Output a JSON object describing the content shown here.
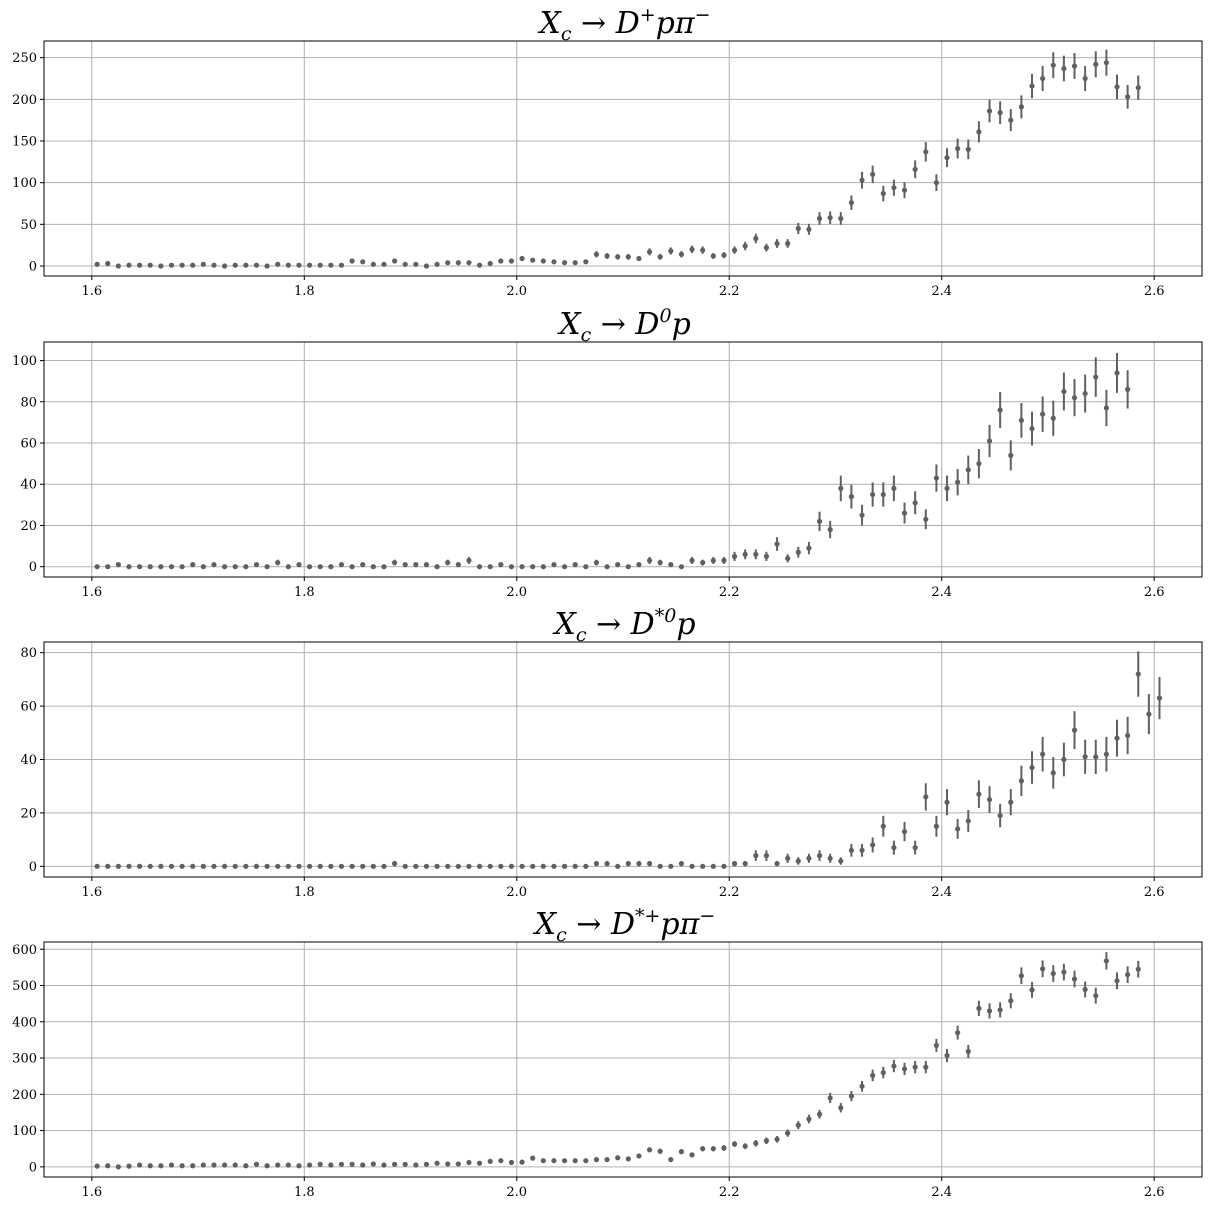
{
  "colors": {
    "points": "#606060",
    "grid": "#b0b0b0",
    "frame": "#000000"
  },
  "chart_data": [
    {
      "type": "scatter",
      "title_parts": [
        "X",
        "c",
        " → D",
        "+",
        "pπ",
        "−"
      ],
      "title_text": "X_c → D^+ p π^-",
      "xlim": [
        1.555,
        2.645
      ],
      "ylim": [
        -12,
        270
      ],
      "xticks": [
        1.6,
        1.8,
        2.0,
        2.2,
        2.4,
        2.6
      ],
      "yticks": [
        0,
        50,
        100,
        150,
        200,
        250
      ],
      "grid": true,
      "x_start": 1.605,
      "x_step": 0.01,
      "values": [
        2,
        3,
        0,
        1,
        1,
        1,
        0,
        1,
        1,
        1,
        2,
        1,
        0,
        1,
        1,
        1,
        0,
        2,
        1,
        1,
        1,
        1,
        1,
        1,
        6,
        5,
        2,
        2,
        6,
        2,
        2,
        0,
        2,
        4,
        4,
        4,
        1,
        3,
        6,
        6,
        9,
        7,
        6,
        5,
        4,
        4,
        5,
        14,
        12,
        11,
        11,
        9,
        17,
        11,
        18,
        14,
        20,
        19,
        12,
        13,
        19,
        24,
        33,
        22,
        27,
        27,
        45,
        44,
        57,
        58,
        57,
        76,
        103,
        110,
        87,
        94,
        91,
        116,
        137,
        100,
        130,
        141,
        140,
        161,
        186,
        184,
        175,
        191,
        216,
        225,
        241,
        237,
        240,
        225,
        242,
        244,
        215,
        203,
        214
      ],
      "errors": [
        1.5,
        1.8,
        0.7,
        1,
        1,
        1,
        0.7,
        1,
        1,
        1,
        1.5,
        1,
        0.7,
        1,
        1,
        1,
        0.7,
        1.5,
        1,
        1,
        1,
        1,
        1,
        1,
        2.5,
        2.3,
        1.5,
        1.5,
        2.5,
        1.5,
        1.5,
        0.7,
        1.5,
        2,
        2,
        2,
        1,
        1.8,
        2.5,
        2.5,
        3,
        2.7,
        2.5,
        2.3,
        2,
        2,
        2.3,
        3.8,
        3.5,
        3.4,
        3.4,
        3,
        4.2,
        3.4,
        4.3,
        3.8,
        4.5,
        4.4,
        3.5,
        3.6,
        4.4,
        5,
        5.8,
        4.7,
        5.2,
        5.2,
        6.7,
        6.6,
        7.6,
        7.6,
        7.6,
        8.7,
        10,
        10.5,
        9.3,
        9.7,
        9.5,
        10.8,
        11.7,
        10,
        11.4,
        11.9,
        11.8,
        12.7,
        13.6,
        13.6,
        13.2,
        13.8,
        14.7,
        15,
        15.5,
        15.4,
        15.5,
        15,
        15.6,
        15.6,
        14.7,
        14.2,
        14.6
      ]
    },
    {
      "type": "scatter",
      "title_parts": [
        "X",
        "c",
        " → D",
        "0",
        "p",
        ""
      ],
      "title_text": "X_c → D^0 p",
      "xlim": [
        1.555,
        2.645
      ],
      "ylim": [
        -5,
        109
      ],
      "xticks": [
        1.6,
        1.8,
        2.0,
        2.2,
        2.4,
        2.6
      ],
      "yticks": [
        0,
        20,
        40,
        60,
        80,
        100
      ],
      "grid": true,
      "x_start": 1.605,
      "x_step": 0.01,
      "values": [
        0,
        0,
        1,
        0,
        0,
        0,
        0,
        0,
        0,
        1,
        0,
        1,
        0,
        0,
        0,
        1,
        0,
        2,
        0,
        1,
        0,
        0,
        0,
        1,
        0,
        1,
        0,
        0,
        2,
        1,
        1,
        1,
        0,
        2,
        1,
        3,
        0,
        0,
        1,
        0,
        0,
        0,
        0,
        1,
        0,
        1,
        0,
        2,
        0,
        1,
        0,
        1,
        3,
        2,
        1,
        0,
        3,
        2,
        3,
        3,
        5,
        6,
        6,
        5,
        11,
        4,
        7,
        9,
        22,
        18,
        38,
        34,
        25,
        35,
        35,
        38,
        26,
        31,
        23,
        43,
        38,
        41,
        47,
        50,
        61,
        76,
        54,
        71,
        67,
        74,
        72,
        85,
        82,
        84,
        92,
        77,
        94,
        86
      ],
      "errors": [
        0.5,
        0.5,
        1,
        0.5,
        0.5,
        0.5,
        0.5,
        0.5,
        0.5,
        1,
        0.5,
        1,
        0.5,
        0.5,
        0.5,
        1,
        0.5,
        1.4,
        0.5,
        1,
        0.5,
        0.5,
        0.5,
        1,
        0.5,
        1,
        0.5,
        0.5,
        1.4,
        1,
        1,
        1,
        0.5,
        1.4,
        1,
        1.7,
        0.5,
        0.5,
        1,
        0.5,
        0.5,
        0.5,
        0.5,
        1,
        0.5,
        1,
        0.5,
        1.4,
        0.5,
        1,
        0.5,
        1,
        1.7,
        1.4,
        1,
        0.5,
        1.7,
        1.4,
        1.7,
        1.7,
        2.2,
        2.4,
        2.4,
        2.2,
        3.3,
        2,
        2.6,
        3,
        4.7,
        4.2,
        6.2,
        5.8,
        5,
        5.9,
        5.9,
        6.2,
        5.1,
        5.6,
        4.8,
        6.6,
        6.2,
        6.4,
        6.9,
        7.1,
        7.8,
        8.7,
        7.3,
        8.4,
        8.2,
        8.6,
        8.5,
        9.2,
        9,
        9.2,
        9.6,
        8.8,
        9.7,
        9.3
      ]
    },
    {
      "type": "scatter",
      "title_parts": [
        "X",
        "c",
        " → D",
        "*0",
        "p",
        ""
      ],
      "title_text": "X_c → D^{*0} p",
      "xlim": [
        1.555,
        2.645
      ],
      "ylim": [
        -4,
        84
      ],
      "xticks": [
        1.6,
        1.8,
        2.0,
        2.2,
        2.4,
        2.6
      ],
      "yticks": [
        0,
        20,
        40,
        60,
        80
      ],
      "grid": true,
      "x_start": 1.605,
      "x_step": 0.01,
      "values": [
        0,
        0,
        0,
        0,
        0,
        0,
        0,
        0,
        0,
        0,
        0,
        0,
        0,
        0,
        0,
        0,
        0,
        0,
        0,
        0,
        0,
        0,
        0,
        0,
        0,
        0,
        0,
        0,
        1,
        0,
        0,
        0,
        0,
        0,
        0,
        0,
        0,
        0,
        0,
        0,
        0,
        0,
        0,
        0,
        0,
        0,
        0,
        1,
        1,
        0,
        1,
        1,
        1,
        0,
        0,
        1,
        0,
        0,
        0,
        0,
        1,
        1,
        4,
        4,
        1,
        3,
        2,
        3,
        4,
        3,
        2,
        6,
        6,
        8,
        15,
        7,
        13,
        7,
        26,
        15,
        24,
        14,
        17,
        27,
        25,
        19,
        24,
        32,
        37,
        42,
        35,
        40,
        51,
        41,
        41,
        42,
        48,
        49,
        72,
        57,
        63
      ],
      "errors": [
        0.3,
        0.3,
        0.3,
        0.3,
        0.3,
        0.3,
        0.3,
        0.3,
        0.3,
        0.3,
        0.3,
        0.3,
        0.3,
        0.3,
        0.3,
        0.3,
        0.3,
        0.3,
        0.3,
        0.3,
        0.3,
        0.3,
        0.3,
        0.3,
        0.3,
        0.3,
        0.3,
        0.3,
        1,
        0.3,
        0.3,
        0.3,
        0.3,
        0.3,
        0.3,
        0.3,
        0.3,
        0.3,
        0.3,
        0.3,
        0.3,
        0.3,
        0.3,
        0.3,
        0.3,
        0.3,
        0.3,
        1,
        1,
        0.3,
        1,
        1,
        1,
        0.3,
        0.3,
        1,
        0.3,
        0.3,
        0.3,
        0.3,
        1,
        1,
        2,
        2,
        1,
        1.7,
        1.4,
        1.7,
        2,
        1.7,
        1.4,
        2.4,
        2.4,
        2.8,
        3.9,
        2.6,
        3.6,
        2.6,
        5.1,
        3.9,
        4.9,
        3.7,
        4.1,
        5.2,
        5,
        4.4,
        4.9,
        5.7,
        6.1,
        6.5,
        5.9,
        6.3,
        7.1,
        6.4,
        6.4,
        6.5,
        6.9,
        7,
        8.5,
        7.5,
        7.9
      ]
    },
    {
      "type": "scatter",
      "title_parts": [
        "X",
        "c",
        " → D",
        "*+",
        "pπ",
        "−"
      ],
      "title_text": "X_c → D^{*+} p π^-",
      "xlim": [
        1.555,
        2.645
      ],
      "ylim": [
        -28,
        620
      ],
      "xticks": [
        1.6,
        1.8,
        2.0,
        2.2,
        2.4,
        2.6
      ],
      "yticks": [
        0,
        100,
        200,
        300,
        400,
        500,
        600
      ],
      "grid": true,
      "x_start": 1.605,
      "x_step": 0.01,
      "values": [
        2,
        3,
        0,
        2,
        5,
        3,
        3,
        5,
        3,
        3,
        5,
        5,
        5,
        5,
        3,
        7,
        3,
        5,
        5,
        3,
        5,
        7,
        5,
        7,
        7,
        5,
        8,
        5,
        7,
        7,
        5,
        7,
        10,
        8,
        8,
        12,
        10,
        15,
        17,
        12,
        13,
        24,
        17,
        17,
        17,
        17,
        17,
        20,
        20,
        25,
        22,
        30,
        47,
        43,
        20,
        42,
        33,
        50,
        50,
        52,
        63,
        57,
        65,
        72,
        76,
        93,
        115,
        132,
        145,
        190,
        163,
        195,
        222,
        252,
        260,
        278,
        270,
        275,
        275,
        335,
        307,
        370,
        318,
        437,
        430,
        433,
        458,
        527,
        488,
        546,
        533,
        537,
        518,
        489,
        472,
        568,
        513,
        530,
        545
      ],
      "errors": [
        2,
        2,
        1,
        2,
        3,
        2,
        2,
        3,
        2,
        2,
        3,
        3,
        3,
        3,
        2,
        3,
        2,
        3,
        3,
        2,
        3,
        3,
        3,
        3,
        3,
        3,
        3,
        3,
        3,
        3,
        3,
        3,
        4,
        3,
        3,
        4,
        4,
        4,
        5,
        4,
        4,
        5,
        5,
        5,
        5,
        5,
        5,
        5,
        5,
        6,
        5,
        6,
        7,
        7,
        5,
        7,
        6,
        7,
        7,
        8,
        8,
        8,
        9,
        9,
        9,
        10,
        11,
        12,
        12,
        14,
        13,
        14,
        15,
        16,
        16,
        17,
        17,
        17,
        17,
        18,
        18,
        19,
        18,
        21,
        21,
        21,
        21,
        23,
        22,
        23,
        23,
        23,
        23,
        22,
        22,
        24,
        23,
        23,
        23
      ]
    }
  ]
}
